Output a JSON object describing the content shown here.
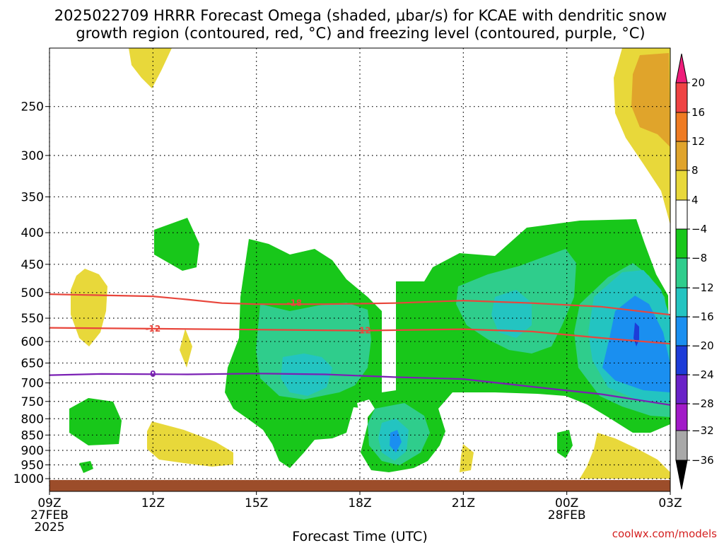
{
  "chart_data": {
    "type": "time-height",
    "title_lines": [
      "2025022709 HRRR Forecast Omega (shaded, μbar/s) for KCAE with dendritic snow",
      "growth region (contoured, red, °C) and freezing level (contoured, purple, °C)"
    ],
    "xlabel": "Forecast Time (UTC)",
    "x_ticks": [
      {
        "hour": 0,
        "lines": [
          "09Z",
          "27FEB",
          "2025"
        ]
      },
      {
        "hour": 3,
        "lines": [
          "12Z"
        ]
      },
      {
        "hour": 6,
        "lines": [
          "15Z"
        ]
      },
      {
        "hour": 9,
        "lines": [
          "18Z"
        ]
      },
      {
        "hour": 12,
        "lines": [
          "21Z"
        ]
      },
      {
        "hour": 15,
        "lines": [
          "00Z",
          "28FEB"
        ]
      },
      {
        "hour": 18,
        "lines": [
          "03Z"
        ]
      }
    ],
    "xlim": [
      0,
      18
    ],
    "ylim": [
      1025,
      200
    ],
    "y_scale": "log",
    "y_ticks": [
      250,
      300,
      350,
      400,
      450,
      500,
      550,
      600,
      650,
      700,
      750,
      800,
      850,
      900,
      950,
      1000
    ],
    "grid": "dotted",
    "contours": [
      {
        "label": "-18",
        "color": "#e8463c",
        "points": [
          [
            0,
            503
          ],
          [
            3,
            507
          ],
          [
            4,
            513
          ],
          [
            5,
            520
          ],
          [
            6,
            522
          ],
          [
            8,
            522
          ],
          [
            10,
            520
          ],
          [
            12,
            515
          ],
          [
            14,
            520
          ],
          [
            16,
            527
          ],
          [
            18,
            543
          ]
        ],
        "label_at": [
          7.1,
          520
        ]
      },
      {
        "label": "-12",
        "color": "#e8463c",
        "points": [
          [
            0,
            570
          ],
          [
            3,
            572
          ],
          [
            6,
            574
          ],
          [
            9,
            576
          ],
          [
            12,
            573
          ],
          [
            14,
            578
          ],
          [
            16,
            592
          ],
          [
            18,
            605
          ]
        ],
        "label_at": [
          3.0,
          572
        ],
        "label_at2": [
          9.1,
          576
        ]
      },
      {
        "label": "0",
        "color": "#7a1fb4",
        "points": [
          [
            0,
            680
          ],
          [
            1.5,
            677
          ],
          [
            4,
            678
          ],
          [
            6,
            676
          ],
          [
            8,
            678
          ],
          [
            10,
            685
          ],
          [
            12,
            690
          ],
          [
            14,
            710
          ],
          [
            16,
            730
          ],
          [
            18,
            760
          ]
        ],
        "label_at": [
          3.0,
          677
        ]
      }
    ],
    "surface": {
      "color": "#9c4d2a",
      "from": 1005
    },
    "colorbar": {
      "ticks": [
        "20",
        "16",
        "12",
        "8",
        "4",
        "−4",
        "−8",
        "−12",
        "−16",
        "−20",
        "−24",
        "−28",
        "−32",
        "−36"
      ],
      "colors": [
        "#ee1d7a",
        "#ef4343",
        "#ef7b22",
        "#e0a42b",
        "#e8d83a",
        "#ffffff",
        "#18c71a",
        "#2fcd8c",
        "#23c4c1",
        "#1a8ff0",
        "#1d3cd8",
        "#6a22c8",
        "#a21ac8",
        "#a8a8a8",
        "#000000"
      ]
    },
    "omega_regions": [
      {
        "value": "4 to 8",
        "color": "#e8d83a"
      },
      {
        "value": "8 to 12",
        "color": "#e0a42b"
      },
      {
        "value": "-4 to -8",
        "color": "#18c71a"
      },
      {
        "value": "-8 to -12",
        "color": "#2fcd8c"
      },
      {
        "value": "-12 to -16",
        "color": "#23c4c1"
      },
      {
        "value": "-16 to -20",
        "color": "#1a8ff0"
      },
      {
        "value": "-20 to -24",
        "color": "#1d3cd8"
      }
    ]
  },
  "credit": "coolwx.com/models"
}
